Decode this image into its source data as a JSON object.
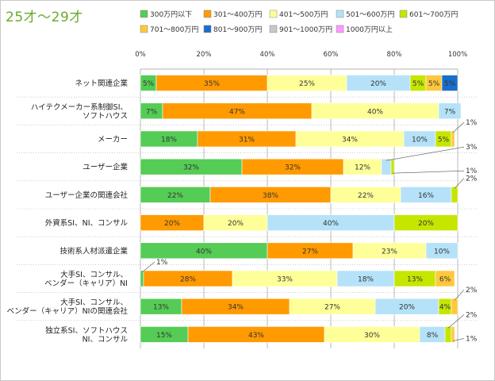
{
  "chart_data": {
    "type": "bar",
    "stacked": "horizontal-100-percent",
    "title": "25才～29才",
    "x_ticks": [
      "0%",
      "20%",
      "40%",
      "60%",
      "80%",
      "100%"
    ],
    "xlim": [
      0,
      100
    ],
    "grid": true,
    "legend_position": "top",
    "series": [
      {
        "name": "300万円以下",
        "color": "#55cc55"
      },
      {
        "name": "301～400万円",
        "color": "#ff9a00"
      },
      {
        "name": "401～500万円",
        "color": "#ffff99"
      },
      {
        "name": "501～600万円",
        "color": "#b5e2f8"
      },
      {
        "name": "601～700万円",
        "color": "#c6e600"
      },
      {
        "name": "701～800万円",
        "color": "#ffc83c"
      },
      {
        "name": "801～900万円",
        "color": "#1a6fcc"
      },
      {
        "name": "901～1000万円",
        "color": "#c8c8c8"
      },
      {
        "name": "1000万円以上",
        "color": "#ff99ff"
      }
    ],
    "categories": [
      {
        "label": "ネット関連企業",
        "values": [
          5,
          35,
          25,
          20,
          5,
          5,
          5,
          0,
          0
        ]
      },
      {
        "label": "ハイテクメーカー系制御SI、\nソフトハウス",
        "values": [
          7,
          47,
          40,
          7,
          0,
          0,
          0,
          0,
          0
        ]
      },
      {
        "label": "メーカー",
        "values": [
          18,
          31,
          34,
          10,
          5,
          1,
          0,
          0,
          0
        ]
      },
      {
        "label": "ユーザー企業",
        "values": [
          32,
          32,
          12,
          3,
          1,
          0,
          0,
          0,
          0
        ]
      },
      {
        "label": "ユーザー企業の関連会社",
        "values": [
          22,
          38,
          22,
          16,
          2,
          0,
          0,
          0,
          0
        ]
      },
      {
        "label": "外資系SI、NI、コンサル",
        "values": [
          0,
          20,
          20,
          40,
          20,
          0,
          0,
          0,
          0
        ]
      },
      {
        "label": "技術系人材派遣企業",
        "values": [
          40,
          27,
          23,
          10,
          0,
          0,
          0,
          0,
          0
        ]
      },
      {
        "label": "大手SI、コンサル、\nベンダー（キャリア）NI",
        "values": [
          1,
          28,
          33,
          18,
          13,
          6,
          0,
          0,
          0
        ]
      },
      {
        "label": "大手SI、コンサル、\nベンダー（キャリア）NIの関連会社",
        "values": [
          13,
          34,
          27,
          20,
          4,
          2,
          0,
          0,
          0
        ]
      },
      {
        "label": "独立系SI、ソフトハウス\nNI、コンサル",
        "values": [
          15,
          43,
          30,
          8,
          2,
          1,
          0,
          0,
          0
        ]
      }
    ]
  }
}
